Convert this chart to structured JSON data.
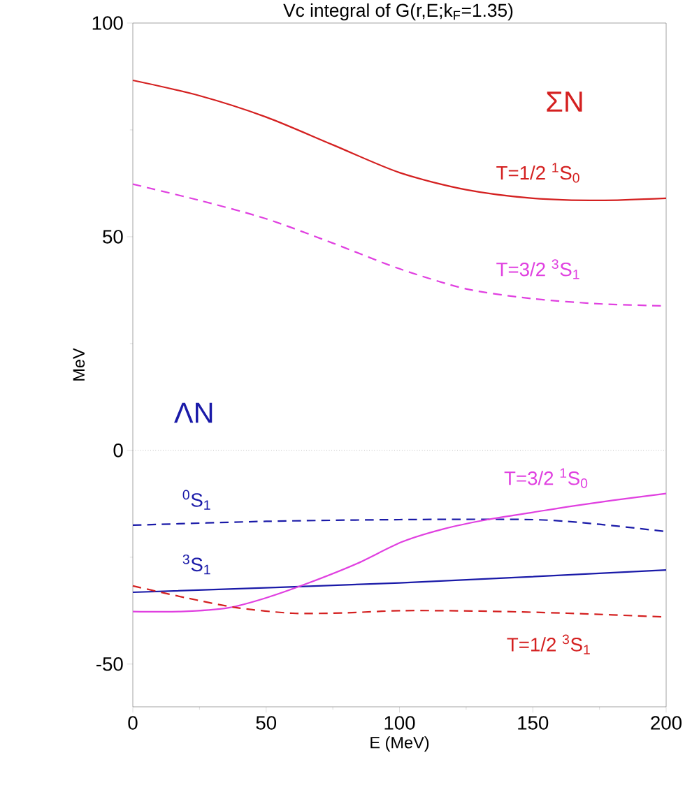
{
  "chart_data": {
    "type": "line",
    "title": "Vc integral of G(r,E;k$_{F}$=1.35)",
    "xlabel": "E (MeV)",
    "ylabel": "MeV",
    "xlim": [
      0,
      200
    ],
    "ylim": [
      -60,
      100
    ],
    "xticks": [
      0,
      50,
      100,
      150,
      200
    ],
    "yticks": [
      -50,
      0,
      50,
      100
    ],
    "series": [
      {
        "name": "T=1/2 $^{1}$S$_{0}$",
        "color": "#d42020",
        "line_style": "solid",
        "x": [
          0,
          25,
          50,
          75,
          100,
          125,
          150,
          175,
          200
        ],
        "values": [
          86.6,
          83,
          78,
          71.5,
          65,
          61,
          59,
          58.5,
          59
        ]
      },
      {
        "name": "T=3/2 $^{3}$S$_{1}$",
        "color": "#e040e0",
        "line_style": "dashed",
        "x": [
          0,
          25,
          50,
          75,
          100,
          125,
          150,
          175,
          200
        ],
        "values": [
          62.3,
          58.5,
          54.2,
          48.5,
          42.5,
          37.8,
          35.5,
          34.3,
          33.8
        ]
      },
      {
        "name": "$^{0}$S$_{1}$",
        "color": "#1a1aa8",
        "line_style": "dashed",
        "x": [
          0,
          50,
          100,
          150,
          175,
          200
        ],
        "values": [
          -17.5,
          -16.6,
          -16.2,
          -16.2,
          -17.3,
          -19
        ]
      },
      {
        "name": "$^{3}$S$_{1}$",
        "color": "#1a1aa8",
        "line_style": "solid",
        "x": [
          0,
          100,
          200
        ],
        "values": [
          -33.2,
          -31,
          -28
        ]
      },
      {
        "name": "T=3/2 $^{1}$S$_{0}$",
        "color": "#e040e0",
        "line_style": "solid",
        "x": [
          0,
          18,
          36,
          50,
          66,
          84,
          101,
          117,
          133,
          150,
          163,
          180,
          200
        ],
        "values": [
          -37.7,
          -37.7,
          -36.8,
          -34.5,
          -31,
          -26.5,
          -21.4,
          -18.3,
          -16.2,
          -14.5,
          -13.2,
          -11.7,
          -10.1
        ]
      },
      {
        "name": "T=1/2 $^{3}$S$_{1}$",
        "color": "#d42020",
        "line_style": "dashed",
        "x": [
          0,
          20,
          39,
          60,
          80,
          101,
          130,
          163,
          200
        ],
        "values": [
          -31.7,
          -34.5,
          -36.8,
          -38.1,
          -38,
          -37.5,
          -37.6,
          -38.1,
          -39
        ]
      }
    ],
    "annotations": [
      "ΣN",
      "ΛN"
    ],
    "ref_lines": [
      {
        "axis": "y",
        "value": 0,
        "color": "#a0a0a0",
        "line_style": "dotted"
      }
    ]
  }
}
